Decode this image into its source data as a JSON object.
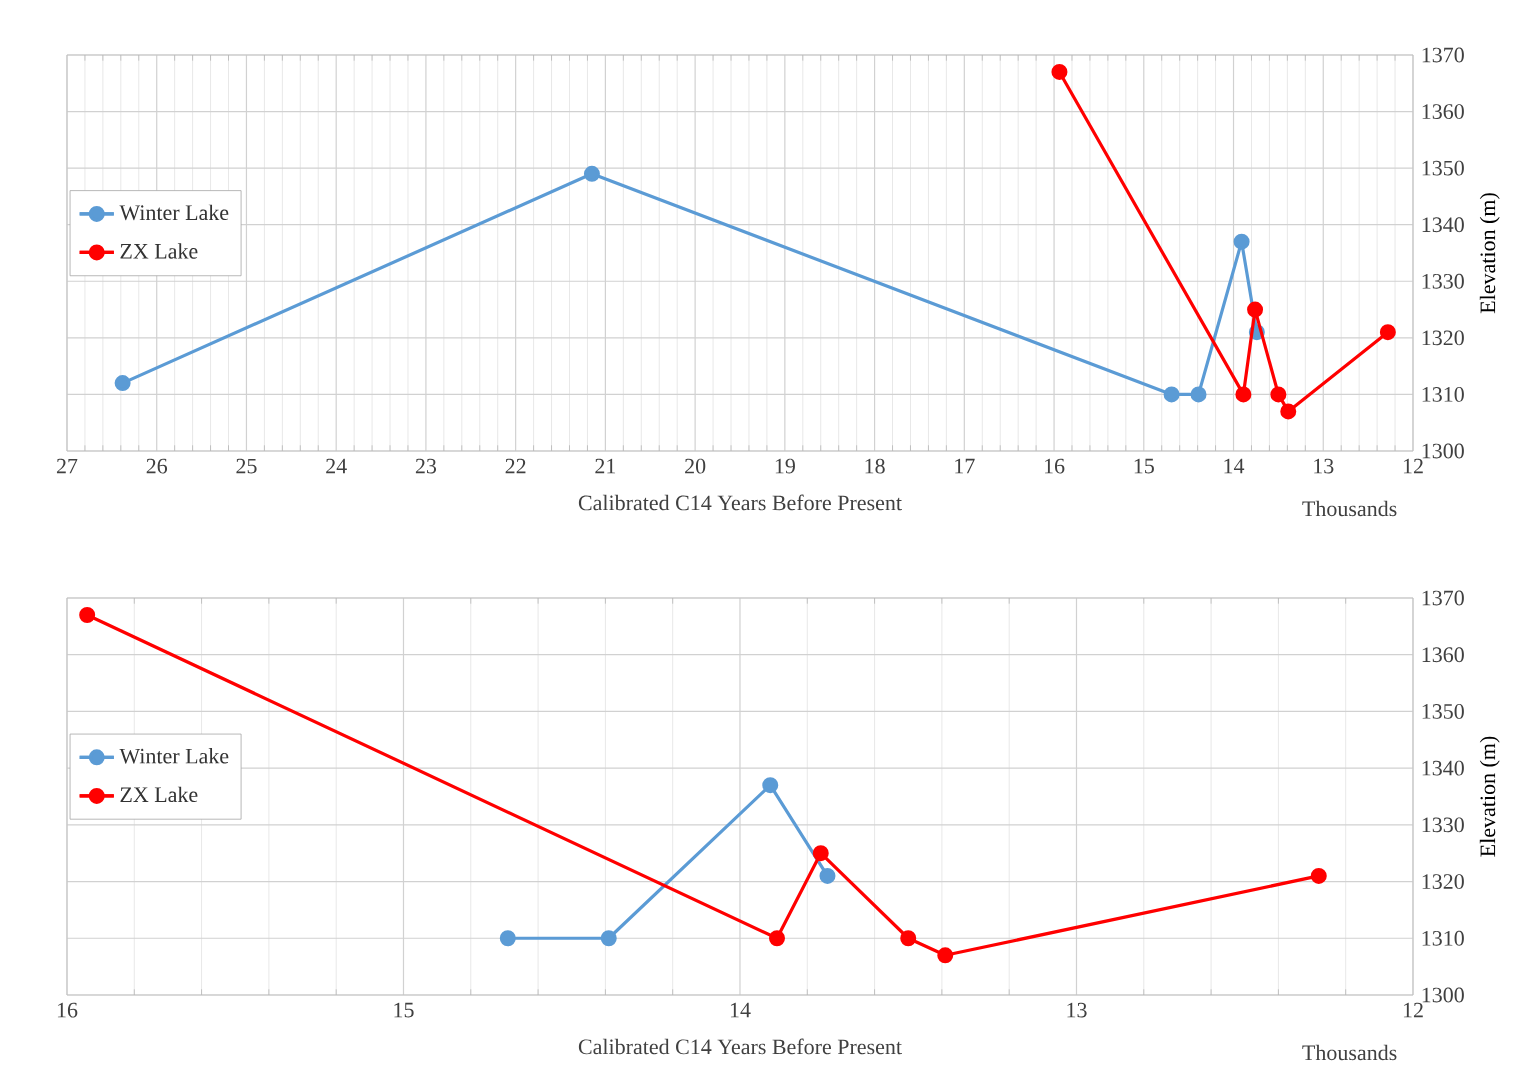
{
  "chart_data": [
    {
      "type": "line",
      "xlabel": "Calibrated C14 Years Before Present",
      "ylabel": "Elevation (m)",
      "annotations": [
        "Thousands"
      ],
      "xlim": [
        27,
        12
      ],
      "xticks": [
        27,
        26,
        25,
        24,
        23,
        22,
        21,
        20,
        19,
        18,
        17,
        16,
        15,
        14,
        13,
        12
      ],
      "ylim": [
        1300,
        1370
      ],
      "yticks": [
        1300,
        1310,
        1320,
        1330,
        1340,
        1350,
        1360,
        1370
      ],
      "grid": true,
      "legend": "left",
      "marker": "circle",
      "line_style": "solid",
      "series": [
        {
          "name": "Winter Lake",
          "color": "#5b9bd5",
          "x": [
            26.38,
            21.15,
            14.69,
            14.39,
            13.91,
            13.74
          ],
          "values": [
            1312,
            1349,
            1310,
            1310,
            1337,
            1321
          ]
        },
        {
          "name": "ZX Lake",
          "color": "#ff0000",
          "x": [
            15.94,
            13.89,
            13.76,
            13.5,
            13.39,
            12.28
          ],
          "values": [
            1367,
            1310,
            1325,
            1310,
            1307,
            1321
          ]
        }
      ]
    },
    {
      "type": "line",
      "xlabel": "Calibrated C14 Years Before Present",
      "ylabel": "Elevation (m)",
      "annotations": [
        "Thousands"
      ],
      "xlim": [
        16,
        12
      ],
      "xticks": [
        16,
        15,
        14,
        13,
        12
      ],
      "ylim": [
        1300,
        1370
      ],
      "yticks": [
        1300,
        1310,
        1320,
        1330,
        1340,
        1350,
        1360,
        1370
      ],
      "grid": true,
      "legend": "left",
      "marker": "circle",
      "line_style": "solid",
      "series": [
        {
          "name": "Winter Lake",
          "color": "#5b9bd5",
          "x": [
            null,
            null,
            14.69,
            14.39,
            13.91,
            13.74
          ],
          "values": [
            null,
            null,
            1310,
            1310,
            1337,
            1321
          ]
        },
        {
          "name": "ZX Lake",
          "color": "#ff0000",
          "x": [
            15.94,
            13.89,
            13.76,
            13.5,
            13.39,
            12.28
          ],
          "values": [
            1367,
            1310,
            1325,
            1310,
            1307,
            1321
          ]
        }
      ]
    }
  ]
}
